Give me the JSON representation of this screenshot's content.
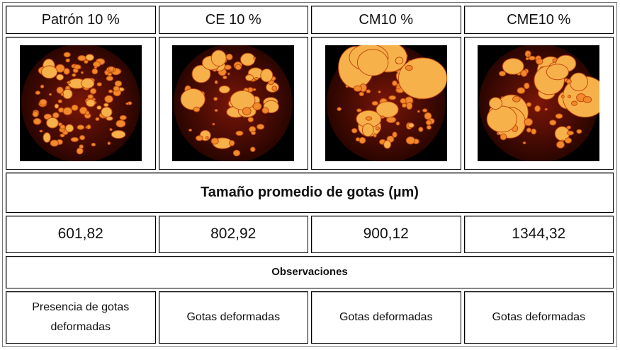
{
  "table": {
    "headers": [
      "Patrón 10 %",
      "CE 10 %",
      "CM10 %",
      "CME10 %"
    ],
    "size_title": "Tamaño promedio de gotas (µm)",
    "sizes": [
      "601,82",
      "802,92",
      "900,12",
      "1344,32"
    ],
    "observations_title": "Observaciones",
    "observations": [
      "Presencia de gotas deformadas",
      "Gotas deformadas",
      "Gotas deformadas",
      "Gotas deformadas"
    ]
  }
}
